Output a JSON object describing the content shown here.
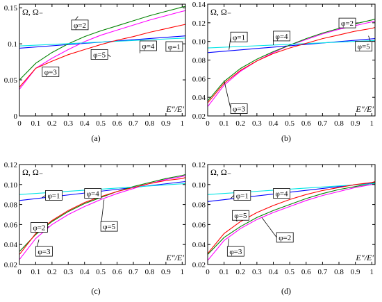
{
  "chart_data": [
    {
      "id": "a",
      "type": "line",
      "caption": "(a)",
      "ylabel": "Ω, Ω₋",
      "xlabel": "E″/E′",
      "xlim": [
        0,
        1.02
      ],
      "ylim": [
        0,
        0.155
      ],
      "xticks": [
        "0",
        "0.1",
        "0.2",
        "0.3",
        "0.4",
        "0.5",
        "0.6",
        "0.7",
        "0.8",
        "0.9",
        "1"
      ],
      "yticks": [
        "0",
        "0.05",
        "0.1",
        "0.15"
      ],
      "ytick_values": [
        0,
        0.05,
        0.1,
        0.15
      ],
      "grid": false,
      "series": [
        {
          "name": "φ=1",
          "color": "#0000ff",
          "x": [
            0,
            1.02
          ],
          "y": [
            0.094,
            0.111
          ]
        },
        {
          "name": "φ=2",
          "color": "#ff00ff",
          "x": [
            0,
            0.1,
            0.2,
            0.3,
            0.4,
            0.5,
            0.6,
            0.7,
            0.8,
            0.9,
            1.0,
            1.02
          ],
          "y": [
            0.037,
            0.066,
            0.08,
            0.092,
            0.103,
            0.112,
            0.119,
            0.126,
            0.133,
            0.139,
            0.145,
            0.146
          ]
        },
        {
          "name": "φ=3",
          "color": "#008000",
          "x": [
            0,
            0.1,
            0.2,
            0.3,
            0.4,
            0.5,
            0.6,
            0.7,
            0.8,
            0.9,
            1.0,
            1.02
          ],
          "y": [
            0.05,
            0.073,
            0.088,
            0.1,
            0.11,
            0.118,
            0.125,
            0.132,
            0.139,
            0.145,
            0.151,
            0.152
          ]
        },
        {
          "name": "φ=4",
          "color": "#00e5e5",
          "x": [
            0,
            1.02
          ],
          "y": [
            0.097,
            0.108
          ]
        },
        {
          "name": "φ=5",
          "color": "#ff0000",
          "x": [
            0,
            0.1,
            0.2,
            0.3,
            0.4,
            0.5,
            0.6,
            0.7,
            0.8,
            0.9,
            1.0,
            1.02
          ],
          "y": [
            0.04,
            0.066,
            0.076,
            0.085,
            0.092,
            0.099,
            0.105,
            0.11,
            0.116,
            0.121,
            0.126,
            0.127
          ]
        }
      ],
      "annotations": [
        {
          "text": "φ=2",
          "x": 0.36,
          "y": 0.138,
          "tx": 0.32,
          "ty": 0.133
        },
        {
          "text": "φ=3",
          "x": 0.2,
          "y": 0.063,
          "tx": 0.14,
          "ty": 0.068
        },
        {
          "text": "φ=5",
          "x": 0.56,
          "y": 0.082,
          "tx": 0.44,
          "ty": 0.092
        },
        {
          "text": "φ=4",
          "x": 0.74,
          "y": 0.087,
          "tx": 0.74,
          "ty": 0.104
        },
        {
          "text": "φ=1",
          "x": 0.98,
          "y": 0.089,
          "tx": 0.9,
          "ty": 0.103
        }
      ]
    },
    {
      "id": "b",
      "type": "line",
      "caption": "(b)",
      "ylabel": "Ω, Ω₋",
      "xlabel": "E″/E′",
      "xlim": [
        0,
        1.02
      ],
      "ylim": [
        0.02,
        0.14
      ],
      "xticks": [
        "0",
        "0.1",
        "0.2",
        "0.3",
        "0.4",
        "0.5",
        "0.6",
        "0.7",
        "0.8",
        "0.9",
        "1"
      ],
      "yticks": [
        "0.02",
        "0.04",
        "0.06",
        "0.08",
        "0.10",
        "0.12",
        "0.14"
      ],
      "ytick_values": [
        0.02,
        0.04,
        0.06,
        0.08,
        0.1,
        0.12,
        0.14
      ],
      "grid": false,
      "series": [
        {
          "name": "φ=1",
          "color": "#0000ff",
          "x": [
            0,
            1.02
          ],
          "y": [
            0.088,
            0.103
          ]
        },
        {
          "name": "φ=2",
          "color": "#ff00ff",
          "x": [
            0,
            0.1,
            0.2,
            0.3,
            0.4,
            0.5,
            0.6,
            0.7,
            0.8,
            0.9,
            1.0,
            1.02
          ],
          "y": [
            0.03,
            0.053,
            0.068,
            0.079,
            0.088,
            0.096,
            0.102,
            0.108,
            0.113,
            0.117,
            0.121,
            0.122
          ]
        },
        {
          "name": "φ=3",
          "color": "#008000",
          "x": [
            0,
            0.1,
            0.2,
            0.3,
            0.4,
            0.5,
            0.6,
            0.7,
            0.8,
            0.9,
            1.0,
            1.02
          ],
          "y": [
            0.036,
            0.057,
            0.071,
            0.081,
            0.089,
            0.096,
            0.103,
            0.109,
            0.114,
            0.119,
            0.123,
            0.124
          ]
        },
        {
          "name": "φ=4",
          "color": "#00e5e5",
          "x": [
            0,
            1.02
          ],
          "y": [
            0.093,
            0.101
          ]
        },
        {
          "name": "φ=5",
          "color": "#ff0000",
          "x": [
            0,
            0.1,
            0.2,
            0.3,
            0.4,
            0.5,
            0.6,
            0.7,
            0.8,
            0.9,
            1.0,
            1.02
          ],
          "y": [
            0.034,
            0.055,
            0.069,
            0.079,
            0.087,
            0.093,
            0.098,
            0.103,
            0.107,
            0.111,
            0.114,
            0.115
          ]
        }
      ],
      "annotations": [
        {
          "text": "φ=1",
          "x": 0.13,
          "y": 0.091,
          "tx": 0.14,
          "ty": 0.11
        },
        {
          "text": "φ=4",
          "x": 0.4,
          "y": 0.096,
          "tx": 0.4,
          "ty": 0.111
        },
        {
          "text": "φ=2",
          "x": 0.92,
          "y": 0.12,
          "tx": 0.8,
          "ty": 0.125
        },
        {
          "text": "φ=5",
          "x": 0.98,
          "y": 0.106,
          "tx": 0.9,
          "ty": 0.1
        },
        {
          "text": "φ=3",
          "x": 0.1,
          "y": 0.058,
          "tx": 0.14,
          "ty": 0.033
        }
      ]
    },
    {
      "id": "c",
      "type": "line",
      "caption": "(c)",
      "ylabel": "Ω, Ω₋",
      "xlabel": "E″/E′",
      "xlim": [
        0,
        1.02
      ],
      "ylim": [
        0.02,
        0.12
      ],
      "xticks": [
        "0",
        "0.1",
        "0.2",
        "0.3",
        "0.4",
        "0.5",
        "0.6",
        "0.7",
        "0.8",
        "0.9",
        "1"
      ],
      "yticks": [
        "0.02",
        "0.04",
        "0.06",
        "0.08",
        "0.10",
        "0.12"
      ],
      "ytick_values": [
        0.02,
        0.04,
        0.06,
        0.08,
        0.1,
        0.12
      ],
      "grid": false,
      "series": [
        {
          "name": "φ=1",
          "color": "#0000ff",
          "x": [
            0,
            1.02
          ],
          "y": [
            0.084,
            0.103
          ]
        },
        {
          "name": "φ=2",
          "color": "#ff00ff",
          "x": [
            0,
            0.1,
            0.2,
            0.3,
            0.4,
            0.5,
            0.6,
            0.7,
            0.8,
            0.9,
            1.0,
            1.02
          ],
          "y": [
            0.025,
            0.046,
            0.06,
            0.07,
            0.078,
            0.085,
            0.091,
            0.096,
            0.101,
            0.105,
            0.108,
            0.109
          ]
        },
        {
          "name": "φ=3",
          "color": "#008000",
          "x": [
            0,
            0.1,
            0.2,
            0.3,
            0.4,
            0.5,
            0.6,
            0.7,
            0.8,
            0.9,
            1.0,
            1.02
          ],
          "y": [
            0.033,
            0.05,
            0.063,
            0.073,
            0.081,
            0.087,
            0.093,
            0.098,
            0.102,
            0.106,
            0.109,
            0.11
          ]
        },
        {
          "name": "φ=4",
          "color": "#00e5e5",
          "x": [
            0,
            1.02
          ],
          "y": [
            0.09,
            0.101
          ]
        },
        {
          "name": "φ=5",
          "color": "#ff0000",
          "x": [
            0,
            0.1,
            0.2,
            0.3,
            0.4,
            0.5,
            0.6,
            0.7,
            0.8,
            0.9,
            1.0,
            1.02
          ],
          "y": [
            0.03,
            0.051,
            0.064,
            0.074,
            0.082,
            0.088,
            0.093,
            0.097,
            0.101,
            0.104,
            0.106,
            0.107
          ]
        }
      ],
      "annotations": [
        {
          "text": "φ=1",
          "x": 0.14,
          "y": 0.087,
          "tx": 0.16,
          "ty": 0.094
        },
        {
          "text": "φ=4",
          "x": 0.4,
          "y": 0.095,
          "tx": 0.4,
          "ty": 0.096
        },
        {
          "text": "φ=2",
          "x": 0.18,
          "y": 0.058,
          "tx": 0.07,
          "ty": 0.062
        },
        {
          "text": "φ=5",
          "x": 0.52,
          "y": 0.085,
          "tx": 0.5,
          "ty": 0.063
        },
        {
          "text": "φ=3",
          "x": 0.12,
          "y": 0.045,
          "tx": 0.1,
          "ty": 0.038
        }
      ]
    },
    {
      "id": "d",
      "type": "line",
      "caption": "(d)",
      "ylabel": "Ω, Ω₋",
      "xlabel": "E″/E′",
      "xlim": [
        0,
        1.02
      ],
      "ylim": [
        0.02,
        0.12
      ],
      "xticks": [
        "0",
        "0.1",
        "0.2",
        "0.3",
        "0.4",
        "0.5",
        "0.6",
        "0.7",
        "0.8",
        "0.9",
        "1"
      ],
      "yticks": [
        "0.02",
        "0.04",
        "0.06",
        "0.08",
        "0.10",
        "0.12"
      ],
      "ytick_values": [
        0.02,
        0.04,
        0.06,
        0.08,
        0.1,
        0.12
      ],
      "grid": false,
      "series": [
        {
          "name": "φ=1",
          "color": "#0000ff",
          "x": [
            0,
            1.02
          ],
          "y": [
            0.083,
            0.102
          ]
        },
        {
          "name": "φ=2",
          "color": "#ff00ff",
          "x": [
            0,
            0.1,
            0.2,
            0.3,
            0.4,
            0.5,
            0.6,
            0.7,
            0.8,
            0.9,
            1.0,
            1.02
          ],
          "y": [
            0.024,
            0.044,
            0.056,
            0.065,
            0.072,
            0.078,
            0.084,
            0.089,
            0.093,
            0.097,
            0.1,
            0.101
          ]
        },
        {
          "name": "φ=3",
          "color": "#008000",
          "x": [
            0,
            0.1,
            0.2,
            0.3,
            0.4,
            0.5,
            0.6,
            0.7,
            0.8,
            0.9,
            1.0,
            1.02
          ],
          "y": [
            0.03,
            0.047,
            0.058,
            0.067,
            0.074,
            0.08,
            0.086,
            0.091,
            0.095,
            0.098,
            0.101,
            0.102
          ]
        },
        {
          "name": "φ=4",
          "color": "#00e5e5",
          "x": [
            0,
            1.02
          ],
          "y": [
            0.09,
            0.101
          ]
        },
        {
          "name": "φ=5",
          "color": "#ff0000",
          "x": [
            0,
            0.1,
            0.2,
            0.3,
            0.4,
            0.5,
            0.6,
            0.7,
            0.8,
            0.9,
            1.0,
            1.02
          ],
          "y": [
            0.031,
            0.051,
            0.063,
            0.072,
            0.079,
            0.085,
            0.09,
            0.094,
            0.097,
            0.1,
            0.102,
            0.103
          ]
        }
      ],
      "annotations": [
        {
          "text": "φ=1",
          "x": 0.14,
          "y": 0.086,
          "tx": 0.16,
          "ty": 0.094
        },
        {
          "text": "φ=4",
          "x": 0.4,
          "y": 0.095,
          "tx": 0.4,
          "ty": 0.096
        },
        {
          "text": "φ=5",
          "x": 0.18,
          "y": 0.063,
          "tx": 0.15,
          "ty": 0.074
        },
        {
          "text": "φ=2",
          "x": 0.33,
          "y": 0.067,
          "tx": 0.42,
          "ty": 0.052
        },
        {
          "text": "φ=3",
          "x": 0.13,
          "y": 0.046,
          "tx": 0.12,
          "ty": 0.038
        }
      ]
    }
  ]
}
